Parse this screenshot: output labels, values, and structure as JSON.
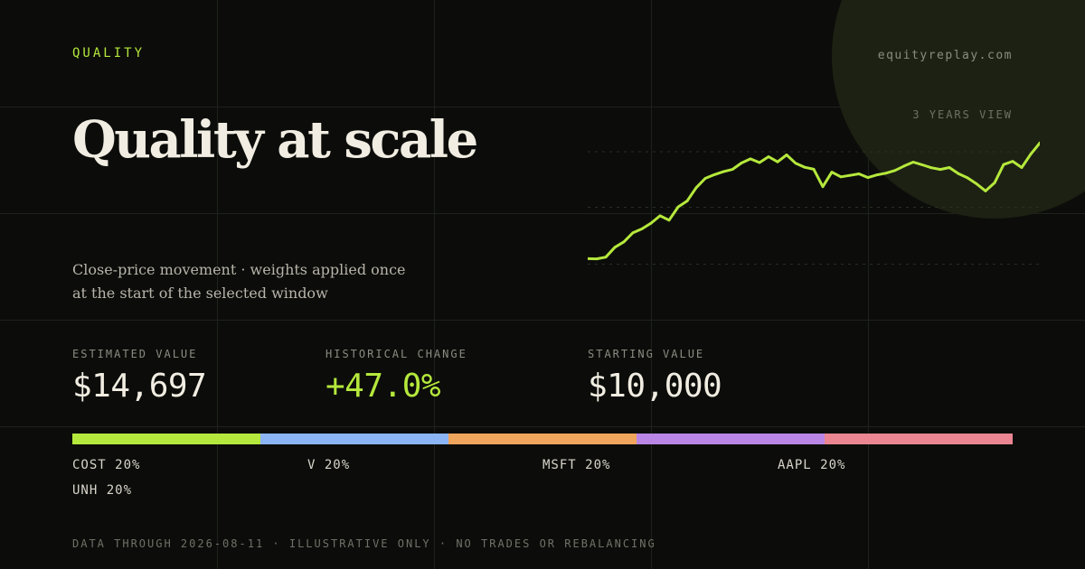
{
  "header": {
    "eyebrow": "QUALITY",
    "site": "equityreplay.com",
    "title": "Quality at scale",
    "subtitle_line1": "Close-price movement · weights applied once",
    "subtitle_line2": "at the start of the selected window",
    "view_label": "3 YEARS VIEW"
  },
  "metrics": {
    "estimated_label": "ESTIMATED VALUE",
    "estimated_value": "$14,697",
    "change_label": "HISTORICAL CHANGE",
    "change_value": "+47.0%",
    "start_label": "STARTING VALUE",
    "start_value": "$10,000"
  },
  "allocation": [
    {
      "label": "COST 20%",
      "ticker": "COST",
      "weight": 20,
      "color": "#b5e83c"
    },
    {
      "label": "V 20%",
      "ticker": "V",
      "weight": 20,
      "color": "#8bb5f5"
    },
    {
      "label": "MSFT 20%",
      "ticker": "MSFT",
      "weight": 20,
      "color": "#f0a55c"
    },
    {
      "label": "AAPL 20%",
      "ticker": "AAPL",
      "weight": 20,
      "color": "#b986e6"
    },
    {
      "label": "UNH 20%",
      "ticker": "UNH",
      "weight": 20,
      "color": "#ea8591"
    }
  ],
  "footer": "DATA THROUGH 2026-08-11 · ILLUSTRATIVE ONLY · NO TRADES OR REBALANCING",
  "colors": {
    "accent": "#b5e83c",
    "background": "#0c0d0a",
    "text": "#f1ede2"
  },
  "chart_data": {
    "type": "line",
    "grid": true,
    "series": [
      {
        "color": "#b5e83c",
        "x": [
          0,
          2,
          4,
          6,
          8,
          10,
          12,
          14,
          16,
          18,
          20,
          22,
          24,
          26,
          28,
          30,
          32,
          34,
          36,
          38,
          40,
          42,
          44,
          46,
          48,
          50,
          52,
          54,
          56,
          58,
          60,
          62,
          64,
          66,
          68,
          70,
          72,
          74,
          76,
          78,
          80,
          82,
          84,
          86,
          88,
          90,
          92,
          94,
          96,
          98,
          100
        ],
        "values": [
          10000,
          9990,
          10060,
          10460,
          10680,
          11050,
          11210,
          11440,
          11740,
          11560,
          12100,
          12340,
          12880,
          13260,
          13410,
          13530,
          13620,
          13880,
          14050,
          13900,
          14140,
          13930,
          14210,
          13870,
          13710,
          13630,
          12920,
          13510,
          13320,
          13380,
          13440,
          13290,
          13400,
          13470,
          13580,
          13760,
          13920,
          13810,
          13690,
          13620,
          13700,
          13450,
          13280,
          13040,
          12750,
          13080,
          13820,
          13950,
          13700,
          14240,
          14697
        ],
        "ylim": [
          9500,
          15000
        ]
      }
    ]
  }
}
